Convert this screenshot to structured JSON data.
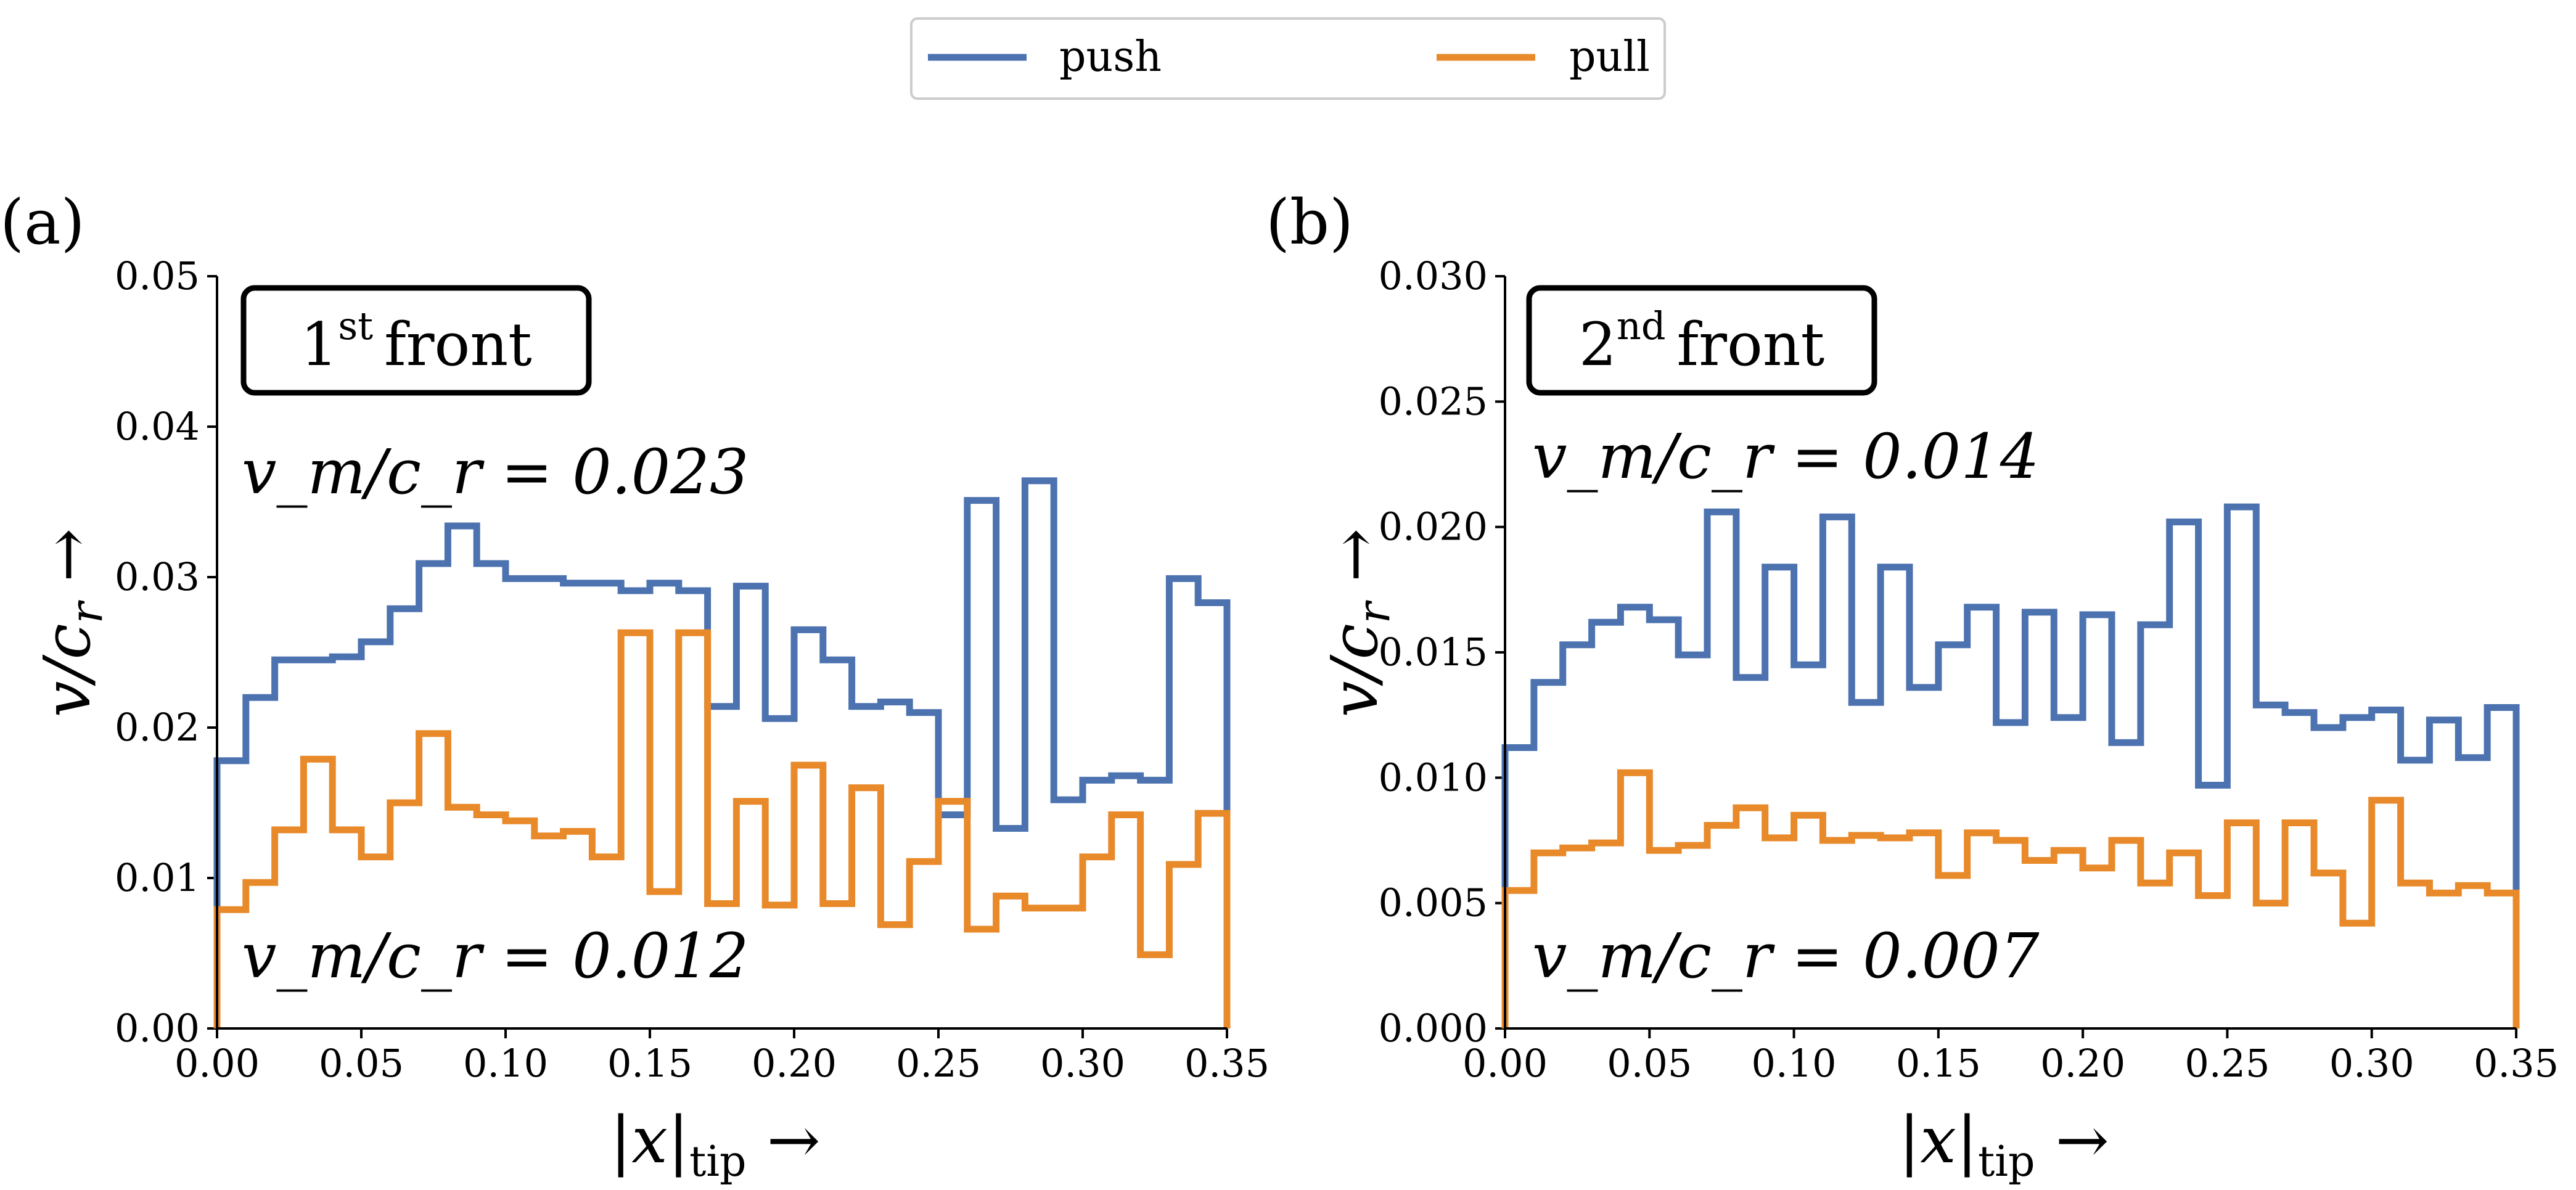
{
  "legend": {
    "items": [
      {
        "label": "push",
        "color": "#4C72B0"
      },
      {
        "label": "pull",
        "color": "#E8892A"
      }
    ]
  },
  "chart_data": [
    {
      "type": "line",
      "panel_label": "(a)",
      "front_text": "1st front",
      "front_ordinal": "1",
      "front_sup": "st",
      "front_word": "front",
      "ylabel": "v/c_r →",
      "xlabel": "|x|_tip →",
      "xlim": [
        0,
        0.35
      ],
      "ylim": [
        0,
        0.05
      ],
      "xticks": [
        0,
        0.05,
        0.1,
        0.15,
        0.2,
        0.25,
        0.3,
        0.35
      ],
      "xtick_labels": [
        "0.00",
        "0.05",
        "0.10",
        "0.15",
        "0.20",
        "0.25",
        "0.30",
        "0.35"
      ],
      "yticks": [
        0,
        0.01,
        0.02,
        0.03,
        0.04,
        0.05
      ],
      "ytick_labels": [
        "0.00",
        "0.01",
        "0.02",
        "0.03",
        "0.04",
        "0.05"
      ],
      "bin_width": 0.01,
      "series": [
        {
          "name": "push",
          "color": "#4C72B0",
          "annotation": "v_m/c_r = 0.023",
          "values": [
            0.0178,
            0.022,
            0.0245,
            0.0245,
            0.0247,
            0.0257,
            0.0279,
            0.0309,
            0.0334,
            0.0309,
            0.0299,
            0.0299,
            0.0296,
            0.0296,
            0.0291,
            0.0296,
            0.0291,
            0.0214,
            0.0294,
            0.0206,
            0.0265,
            0.0245,
            0.0214,
            0.0217,
            0.021,
            0.0142,
            0.0351,
            0.0133,
            0.0364,
            0.0152,
            0.0165,
            0.0168,
            0.0165,
            0.0299,
            0.0283
          ]
        },
        {
          "name": "pull",
          "color": "#E8892A",
          "annotation": "v_m/c_r = 0.012",
          "values": [
            0.0079,
            0.0097,
            0.0132,
            0.0179,
            0.0132,
            0.0114,
            0.015,
            0.0196,
            0.0147,
            0.0142,
            0.0138,
            0.0128,
            0.0131,
            0.0114,
            0.0263,
            0.0091,
            0.0263,
            0.0083,
            0.0151,
            0.0082,
            0.0175,
            0.0083,
            0.016,
            0.0069,
            0.0111,
            0.0151,
            0.0066,
            0.0088,
            0.008,
            0.008,
            0.0114,
            0.0142,
            0.0049,
            0.0109,
            0.0143
          ]
        }
      ]
    },
    {
      "type": "line",
      "panel_label": "(b)",
      "front_text": "2nd front",
      "front_ordinal": "2",
      "front_sup": "nd",
      "front_word": "front",
      "ylabel": "v/c_r →",
      "xlabel": "|x|_tip →",
      "xlim": [
        0,
        0.35
      ],
      "ylim": [
        0,
        0.03
      ],
      "xticks": [
        0,
        0.05,
        0.1,
        0.15,
        0.2,
        0.25,
        0.3,
        0.35
      ],
      "xtick_labels": [
        "0.00",
        "0.05",
        "0.10",
        "0.15",
        "0.20",
        "0.25",
        "0.30",
        "0.35"
      ],
      "yticks": [
        0,
        0.005,
        0.01,
        0.015,
        0.02,
        0.025,
        0.03
      ],
      "ytick_labels": [
        "0.000",
        "0.005",
        "0.010",
        "0.015",
        "0.020",
        "0.025",
        "0.030"
      ],
      "bin_width": 0.01,
      "series": [
        {
          "name": "push",
          "color": "#4C72B0",
          "annotation": "v_m/c_r = 0.014",
          "values": [
            0.0112,
            0.0138,
            0.0153,
            0.0162,
            0.0168,
            0.0163,
            0.0149,
            0.0206,
            0.014,
            0.0184,
            0.0145,
            0.0204,
            0.013,
            0.0184,
            0.0136,
            0.0153,
            0.0168,
            0.0122,
            0.0166,
            0.0124,
            0.0165,
            0.0114,
            0.0161,
            0.0202,
            0.0097,
            0.0208,
            0.0129,
            0.0126,
            0.012,
            0.0124,
            0.0127,
            0.0107,
            0.0123,
            0.0108,
            0.0128
          ]
        },
        {
          "name": "pull",
          "color": "#E8892A",
          "annotation": "v_m/c_r = 0.007",
          "values": [
            0.0055,
            0.007,
            0.0072,
            0.0074,
            0.0102,
            0.0071,
            0.0073,
            0.0081,
            0.0088,
            0.0076,
            0.0085,
            0.0075,
            0.0077,
            0.0076,
            0.0078,
            0.0061,
            0.0078,
            0.0075,
            0.0067,
            0.0071,
            0.0064,
            0.0075,
            0.0058,
            0.007,
            0.0053,
            0.0082,
            0.005,
            0.0082,
            0.0062,
            0.0042,
            0.0091,
            0.0058,
            0.0054,
            0.0057,
            0.0054
          ]
        }
      ]
    }
  ]
}
